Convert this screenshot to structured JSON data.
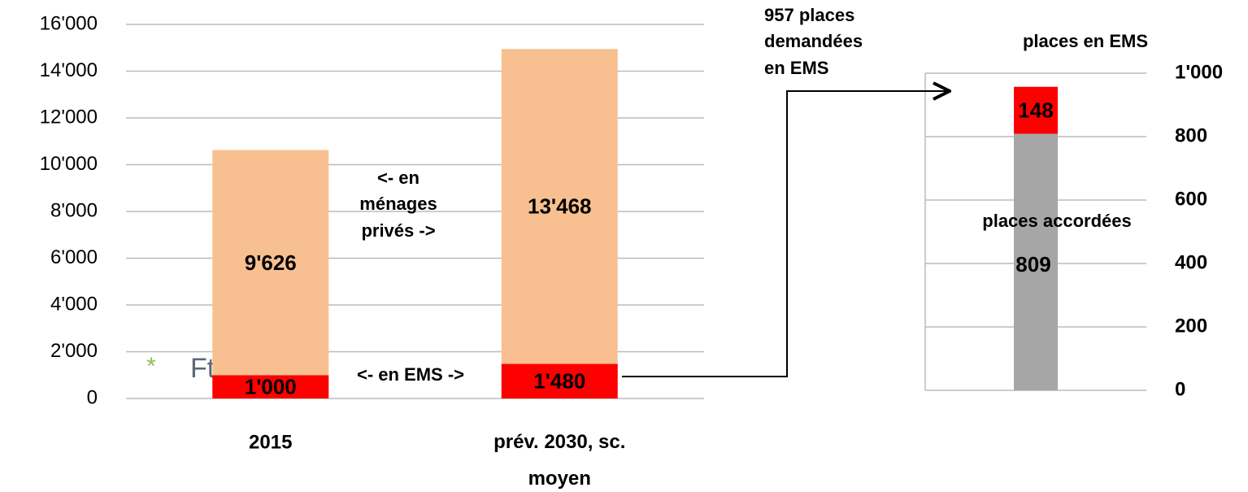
{
  "chart_data": [
    {
      "type": "stacked_bar",
      "categories": [
        "2015",
        "prév. 2030, sc. moyen"
      ],
      "series": [
        {
          "color": "#ff0000",
          "values": [
            1000,
            1480
          ],
          "value_labels": [
            "1'000",
            "1'480"
          ]
        },
        {
          "color": "#f8c090",
          "values": [
            9626,
            13468
          ],
          "value_labels": [
            "9'626",
            "13'468"
          ]
        }
      ],
      "ylim": [
        0,
        16000
      ],
      "yticks": [
        0,
        {
          "value": 2000,
          "label": "2'000"
        },
        {
          "value": 4000,
          "label": "4'000"
        },
        {
          "value": 6000,
          "label": "6'000"
        },
        {
          "value": 8000,
          "label": "8'000"
        },
        {
          "value": 10000,
          "label": "10'000"
        },
        {
          "value": 12000,
          "label": "12'000"
        },
        {
          "value": 14000,
          "label": "14'000"
        },
        {
          "value": 16000,
          "label": "16'000"
        }
      ],
      "grid": true,
      "annotations": [
        {
          "lines": [
            "<- en",
            "ménages",
            "privés ->"
          ]
        },
        {
          "lines": [
            "<- en EMS ->"
          ]
        }
      ]
    },
    {
      "type": "stacked_bar",
      "title": "places en EMS",
      "categories": [
        null
      ],
      "series": [
        {
          "color": "#a6a6a6",
          "values": [
            809
          ],
          "value_labels": [
            "809"
          ]
        },
        {
          "color": "#ff0000",
          "values": [
            148
          ],
          "value_labels": [
            "148"
          ]
        }
      ],
      "ylim": [
        0,
        1000
      ],
      "yticks": [
        0,
        200,
        400,
        600,
        800,
        {
          "value": 1000,
          "label": "1'000"
        }
      ],
      "grid": true,
      "annotations": [
        {
          "lines": [
            "places accordées"
          ]
        },
        {
          "lines": [
            "957 places",
            "demandées",
            "en EMS"
          ]
        }
      ]
    }
  ],
  "overlay_text": "Ft"
}
